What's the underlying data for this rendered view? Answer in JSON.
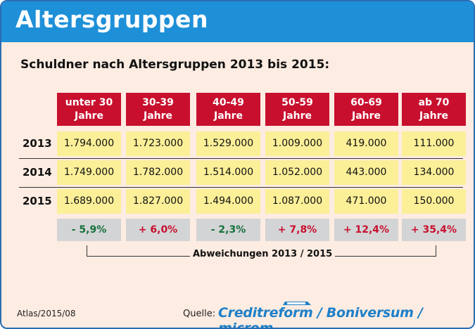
{
  "title": "Altersgruppen",
  "subtitle": "Schuldner nach Altersgruppen 2013 bis 2015:",
  "chart_data": {
    "type": "table",
    "title": "Schuldner nach Altersgruppen 2013 bis 2015:",
    "columns": [
      {
        "line1": "unter 30",
        "line2": "Jahre"
      },
      {
        "line1": "30-39",
        "line2": "Jahre"
      },
      {
        "line1": "40-49",
        "line2": "Jahre"
      },
      {
        "line1": "50-59",
        "line2": "Jahre"
      },
      {
        "line1": "60-69",
        "line2": "Jahre"
      },
      {
        "line1": "ab 70",
        "line2": "Jahre"
      }
    ],
    "rows": [
      {
        "year": "2013",
        "values": [
          "1.794.000",
          "1.723.000",
          "1.529.000",
          "1.009.000",
          "419.000",
          "111.000"
        ]
      },
      {
        "year": "2014",
        "values": [
          "1.749.000",
          "1.782.000",
          "1.514.000",
          "1.052.000",
          "443.000",
          "134.000"
        ]
      },
      {
        "year": "2015",
        "values": [
          "1.689.000",
          "1.827.000",
          "1.494.000",
          "1.087.000",
          "471.000",
          "150.000"
        ]
      }
    ],
    "changes": [
      "- 5,9%",
      "+ 6,0%",
      "- 2,3%",
      "+ 7,8%",
      "+ 12,4%",
      "+ 35,4%"
    ],
    "changes_label": "Abweichungen 2013 / 2015"
  },
  "footer": {
    "atlas": "Atlas/2015/08",
    "quelle": "Quelle:",
    "source": "Creditreform / Boniversum / microm"
  },
  "colors": {
    "title_bar": "#1e90d8",
    "header": "#c8102e",
    "cell": "#fbef98",
    "negative": "#16713a",
    "positive": "#c8102e",
    "source": "#1e80c8"
  }
}
